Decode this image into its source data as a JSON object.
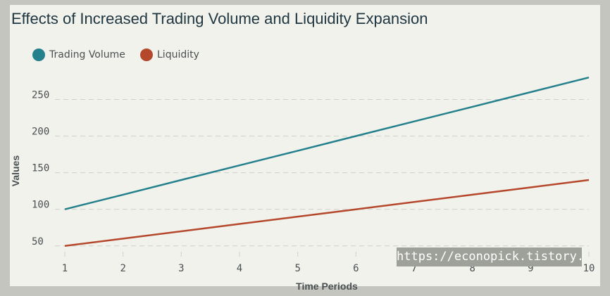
{
  "colors": {
    "page_background": "#c4c5bf",
    "plot_background": "#f1f2ec",
    "trading_volume": "#23808c",
    "liquidity": "#b5472b",
    "grid": "#cfd0ca"
  },
  "chart_data": {
    "type": "line",
    "title": "Effects of Increased Trading Volume and Liquidity Expansion",
    "xlabel": "Time Periods",
    "ylabel": "Values",
    "x": [
      1,
      2,
      3,
      4,
      5,
      6,
      7,
      8,
      9,
      10
    ],
    "x_ticks": [
      "1",
      "2",
      "3",
      "4",
      "5",
      "6",
      "7",
      "8",
      "9",
      "10"
    ],
    "y_ticks": [
      "50",
      "100",
      "150",
      "200",
      "250"
    ],
    "ylim": [
      45,
      285
    ],
    "grid": "horizontal dashed",
    "legend_position": "top-left",
    "series": [
      {
        "name": "Trading Volume",
        "color": "#23808c",
        "values": [
          100,
          120,
          140,
          160,
          180,
          200,
          220,
          240,
          260,
          280
        ]
      },
      {
        "name": "Liquidity",
        "color": "#b5472b",
        "values": [
          50,
          60,
          70,
          80,
          90,
          100,
          110,
          120,
          130,
          140
        ]
      }
    ]
  },
  "watermark": "https://econopick.tistory.com"
}
